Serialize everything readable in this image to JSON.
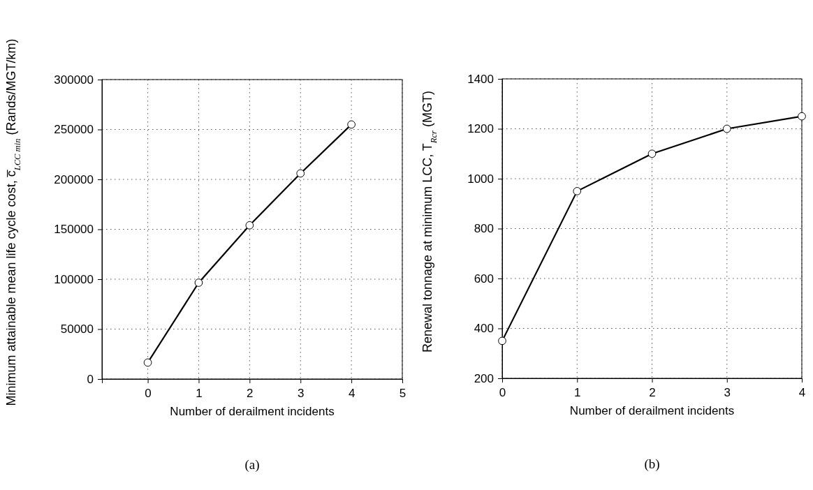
{
  "chart_data": [
    {
      "type": "line",
      "xlabel": "Number of derailment incidents",
      "ylabel": "Minimum attainable mean life cycle cost, c̅$_{LCC min}$ (Rands/MGT/km)",
      "x": [
        0,
        1,
        2,
        3,
        4
      ],
      "series": [
        {
          "color": "#000000",
          "values": [
            16500,
            96500,
            154000,
            206000,
            255000
          ]
        }
      ],
      "xlim": [
        -0.9,
        5
      ],
      "xticks": [
        0,
        1,
        2,
        3,
        4,
        5
      ],
      "ylim": [
        0,
        300000
      ],
      "yticks": [
        0,
        50000,
        100000,
        150000,
        200000,
        250000,
        300000
      ],
      "grid": true,
      "marker": "circle",
      "line_style": "solid",
      "annotations": [
        "(a)"
      ]
    },
    {
      "type": "line",
      "xlabel": "Number of derailment incidents",
      "ylabel": "Renewal tonnage at minimum LCC, T$_{Rcr}$ (MGT)",
      "x": [
        0,
        1,
        2,
        3,
        4
      ],
      "series": [
        {
          "color": "#000000",
          "values": [
            350,
            950,
            1100,
            1200,
            1250
          ]
        }
      ],
      "xlim": [
        0,
        4
      ],
      "xticks": [
        0,
        1,
        2,
        3,
        4
      ],
      "ylim": [
        200,
        1400
      ],
      "yticks": [
        200,
        400,
        600,
        800,
        1000,
        1200,
        1400
      ],
      "grid": true,
      "marker": "circle",
      "line_style": "solid",
      "annotations": [
        "(b)"
      ]
    }
  ]
}
